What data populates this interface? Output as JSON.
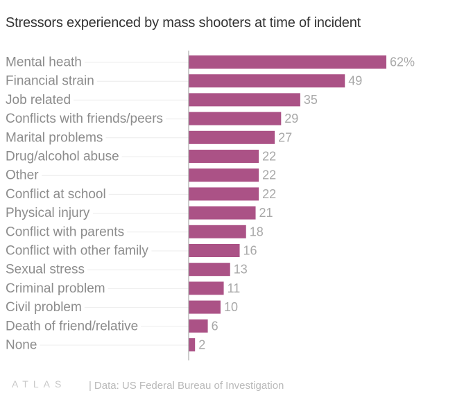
{
  "title": "Stressors experienced by mass shooters at time of incident",
  "footer": {
    "logo": "ATLAS",
    "source_separator": "|",
    "source": "Data: US Federal Bureau of Investigation"
  },
  "colors": {
    "bar": "#ab5286",
    "label": "#8c8c8c",
    "value": "#a8a8a8",
    "axis": "#999999",
    "leader": "#ececec"
  },
  "chart_data": {
    "type": "bar",
    "orientation": "horizontal",
    "title": "Stressors experienced by mass shooters at time of incident",
    "xlabel": "",
    "ylabel": "",
    "xlim": [
      0,
      62
    ],
    "grid": false,
    "unit_suffix": "%",
    "categories": [
      "Mental heath",
      "Financial strain",
      "Job related",
      "Conflicts with friends/peers",
      "Marital problems",
      "Drug/alcohol abuse",
      "Other",
      "Conflict at school",
      "Physical injury",
      "Conflict with parents",
      "Conflict with other family",
      "Sexual stress",
      "Criminal problem",
      "Civil problem",
      "Death of friend/relative",
      "None"
    ],
    "values": [
      62,
      49,
      35,
      29,
      27,
      22,
      22,
      22,
      21,
      18,
      16,
      13,
      11,
      10,
      6,
      2
    ],
    "value_labels": [
      "62%",
      "49",
      "35",
      "29",
      "27",
      "22",
      "22",
      "22",
      "21",
      "18",
      "16",
      "13",
      "11",
      "10",
      "6",
      "2"
    ]
  }
}
